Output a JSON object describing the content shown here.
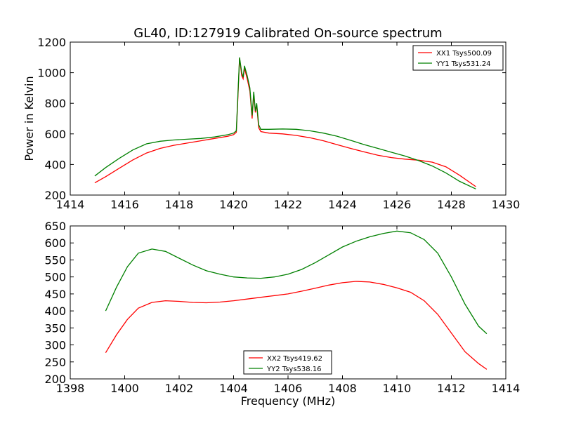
{
  "figure": {
    "title": "GL40, ID:127919 Calibrated On-source spectrum",
    "xlabel": "Frequency (MHz)",
    "ylabel": "Power in Kelvin"
  },
  "chart_data": [
    {
      "type": "line",
      "title": "GL40, ID:127919 Calibrated On-source spectrum",
      "xlabel": "",
      "ylabel": "Power in Kelvin",
      "xlim": [
        1414,
        1430
      ],
      "ylim": [
        200,
        1200
      ],
      "xticks": [
        1414,
        1416,
        1418,
        1420,
        1422,
        1424,
        1426,
        1428,
        1430
      ],
      "yticks": [
        200,
        400,
        600,
        800,
        1000,
        1200
      ],
      "legend_position": "top-right",
      "grid": false,
      "series": [
        {
          "name": "XX1 Tsys500.09",
          "color": "#ff0000",
          "x": [
            1414.9,
            1415.3,
            1415.8,
            1416.3,
            1416.8,
            1417.3,
            1417.8,
            1418.3,
            1418.8,
            1419.3,
            1419.8,
            1420.0,
            1420.1,
            1420.15,
            1420.22,
            1420.3,
            1420.35,
            1420.4,
            1420.5,
            1420.6,
            1420.68,
            1420.74,
            1420.8,
            1420.85,
            1420.92,
            1421.0,
            1421.3,
            1421.8,
            1422.3,
            1422.8,
            1423.3,
            1423.8,
            1424.3,
            1424.8,
            1425.3,
            1425.8,
            1426.3,
            1426.8,
            1427.3,
            1427.8,
            1428.3,
            1428.9
          ],
          "values": [
            280,
            320,
            375,
            430,
            475,
            505,
            525,
            540,
            555,
            570,
            585,
            595,
            610,
            800,
            1095,
            980,
            960,
            1030,
            960,
            880,
            700,
            860,
            740,
            790,
            640,
            615,
            605,
            600,
            590,
            575,
            555,
            530,
            505,
            482,
            460,
            445,
            435,
            428,
            415,
            385,
            330,
            255
          ]
        },
        {
          "name": "YY1 Tsys531.24",
          "color": "#008000",
          "x": [
            1414.9,
            1415.3,
            1415.8,
            1416.3,
            1416.8,
            1417.3,
            1417.8,
            1418.3,
            1418.8,
            1419.3,
            1419.8,
            1420.0,
            1420.1,
            1420.15,
            1420.22,
            1420.3,
            1420.35,
            1420.4,
            1420.5,
            1420.6,
            1420.68,
            1420.74,
            1420.8,
            1420.85,
            1420.92,
            1421.0,
            1421.3,
            1421.8,
            1422.3,
            1422.8,
            1423.3,
            1423.8,
            1424.3,
            1424.8,
            1425.3,
            1425.8,
            1426.3,
            1426.8,
            1427.3,
            1427.8,
            1428.3,
            1428.9
          ],
          "values": [
            325,
            380,
            440,
            495,
            535,
            552,
            560,
            565,
            570,
            580,
            595,
            605,
            620,
            820,
            1100,
            1000,
            970,
            1045,
            980,
            900,
            720,
            875,
            750,
            800,
            660,
            630,
            630,
            632,
            630,
            620,
            605,
            585,
            558,
            530,
            505,
            480,
            455,
            425,
            390,
            345,
            290,
            240
          ]
        }
      ]
    },
    {
      "type": "line",
      "title": "",
      "xlabel": "Frequency (MHz)",
      "ylabel": "",
      "xlim": [
        1398,
        1414
      ],
      "ylim": [
        200,
        650
      ],
      "xticks": [
        1398,
        1400,
        1402,
        1404,
        1406,
        1408,
        1410,
        1412,
        1414
      ],
      "yticks": [
        200,
        250,
        300,
        350,
        400,
        450,
        500,
        550,
        600,
        650
      ],
      "legend_position": "bottom-center",
      "grid": false,
      "series": [
        {
          "name": "XX2 Tsys419.62",
          "color": "#ff0000",
          "x": [
            1399.3,
            1399.7,
            1400.1,
            1400.5,
            1401.0,
            1401.5,
            1402.0,
            1402.5,
            1403.0,
            1403.5,
            1404.0,
            1404.5,
            1405.0,
            1405.5,
            1406.0,
            1406.5,
            1407.0,
            1407.5,
            1408.0,
            1408.5,
            1409.0,
            1409.5,
            1410.0,
            1410.5,
            1411.0,
            1411.5,
            1412.0,
            1412.5,
            1413.0,
            1413.3
          ],
          "values": [
            277,
            330,
            375,
            408,
            425,
            430,
            428,
            425,
            424,
            426,
            430,
            435,
            440,
            445,
            450,
            458,
            467,
            476,
            483,
            487,
            485,
            478,
            468,
            455,
            430,
            390,
            335,
            280,
            245,
            228
          ]
        },
        {
          "name": "YY2 Tsys538.16",
          "color": "#008000",
          "x": [
            1399.3,
            1399.7,
            1400.1,
            1400.5,
            1401.0,
            1401.5,
            1402.0,
            1402.5,
            1403.0,
            1403.5,
            1404.0,
            1404.5,
            1405.0,
            1405.5,
            1406.0,
            1406.5,
            1407.0,
            1407.5,
            1408.0,
            1408.5,
            1409.0,
            1409.5,
            1410.0,
            1410.5,
            1411.0,
            1411.5,
            1412.0,
            1412.5,
            1413.0,
            1413.3
          ],
          "values": [
            400,
            470,
            530,
            570,
            582,
            575,
            555,
            535,
            518,
            508,
            500,
            497,
            496,
            500,
            508,
            522,
            542,
            565,
            588,
            605,
            618,
            628,
            635,
            630,
            610,
            570,
            500,
            420,
            355,
            333
          ]
        }
      ]
    }
  ]
}
